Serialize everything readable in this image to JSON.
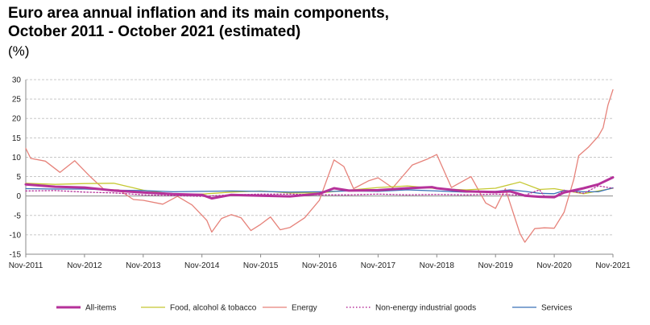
{
  "title_line1": "Euro area annual inflation and its main components,",
  "title_line2": "October 2011 - October 2021 (estimated)",
  "unit": "(%)",
  "chart_data": {
    "type": "line",
    "ylim": [
      -15,
      30
    ],
    "yticks": [
      -15,
      -10,
      -5,
      0,
      5,
      10,
      15,
      20,
      25,
      30
    ],
    "xlim": [
      "2011-11",
      "2021-11"
    ],
    "xticks": [
      "Nov-2011",
      "Nov-2012",
      "Nov-2013",
      "Nov-2014",
      "Nov-2015",
      "Nov-2016",
      "Nov-2017",
      "Nov-2018",
      "Nov-2019",
      "Nov-2020",
      "Nov-2021"
    ],
    "grid": true,
    "legend_position": "bottom",
    "series": [
      {
        "name": "All-items",
        "color": "#b5319a",
        "style": "solid-thick",
        "points": [
          [
            "2011-11",
            3.0
          ],
          [
            "2012-05",
            2.4
          ],
          [
            "2012-11",
            2.2
          ],
          [
            "2013-05",
            1.4
          ],
          [
            "2013-11",
            0.9
          ],
          [
            "2014-05",
            0.5
          ],
          [
            "2014-11",
            0.3
          ],
          [
            "2015-01",
            -0.6
          ],
          [
            "2015-05",
            0.3
          ],
          [
            "2015-11",
            0.1
          ],
          [
            "2016-05",
            -0.1
          ],
          [
            "2016-11",
            0.6
          ],
          [
            "2017-02",
            2.0
          ],
          [
            "2017-05",
            1.4
          ],
          [
            "2017-11",
            1.5
          ],
          [
            "2018-05",
            2.0
          ],
          [
            "2018-10",
            2.3
          ],
          [
            "2018-11",
            2.0
          ],
          [
            "2019-05",
            1.2
          ],
          [
            "2019-11",
            1.0
          ],
          [
            "2020-02",
            1.2
          ],
          [
            "2020-05",
            0.1
          ],
          [
            "2020-08",
            -0.2
          ],
          [
            "2020-11",
            -0.3
          ],
          [
            "2021-01",
            0.9
          ],
          [
            "2021-05",
            2.0
          ],
          [
            "2021-08",
            3.0
          ],
          [
            "2021-11",
            4.8
          ]
        ]
      },
      {
        "name": "Food, alcohol & tobacco",
        "color": "#c5c832",
        "style": "solid",
        "points": [
          [
            "2011-11",
            3.3
          ],
          [
            "2012-05",
            3.0
          ],
          [
            "2012-11",
            3.2
          ],
          [
            "2013-05",
            3.3
          ],
          [
            "2013-11",
            1.5
          ],
          [
            "2014-05",
            0.5
          ],
          [
            "2014-11",
            0.5
          ],
          [
            "2015-05",
            1.0
          ],
          [
            "2015-11",
            1.3
          ],
          [
            "2016-05",
            0.8
          ],
          [
            "2016-11",
            0.8
          ],
          [
            "2017-05",
            1.5
          ],
          [
            "2017-11",
            2.2
          ],
          [
            "2018-05",
            2.6
          ],
          [
            "2018-11",
            1.9
          ],
          [
            "2019-05",
            1.6
          ],
          [
            "2019-11",
            2.0
          ],
          [
            "2020-04",
            3.6
          ],
          [
            "2020-08",
            1.7
          ],
          [
            "2020-11",
            1.9
          ],
          [
            "2021-05",
            0.6
          ],
          [
            "2021-11",
            2.0
          ]
        ]
      },
      {
        "name": "Energy",
        "color": "#e6827a",
        "style": "solid",
        "points": [
          [
            "2011-11",
            12.3
          ],
          [
            "2011-12",
            9.7
          ],
          [
            "2012-03",
            9.0
          ],
          [
            "2012-06",
            6.1
          ],
          [
            "2012-09",
            9.1
          ],
          [
            "2012-12",
            5.2
          ],
          [
            "2013-03",
            1.7
          ],
          [
            "2013-06",
            1.6
          ],
          [
            "2013-09",
            -0.9
          ],
          [
            "2013-11",
            -1.1
          ],
          [
            "2014-03",
            -2.1
          ],
          [
            "2014-06",
            -0.1
          ],
          [
            "2014-09",
            -2.3
          ],
          [
            "2014-12",
            -6.3
          ],
          [
            "2015-01",
            -9.3
          ],
          [
            "2015-03",
            -5.8
          ],
          [
            "2015-05",
            -4.8
          ],
          [
            "2015-07",
            -5.6
          ],
          [
            "2015-09",
            -8.9
          ],
          [
            "2015-11",
            -7.3
          ],
          [
            "2016-01",
            -5.4
          ],
          [
            "2016-03",
            -8.7
          ],
          [
            "2016-05",
            -8.1
          ],
          [
            "2016-08",
            -5.6
          ],
          [
            "2016-11",
            -1.1
          ],
          [
            "2017-02",
            9.3
          ],
          [
            "2017-04",
            7.6
          ],
          [
            "2017-06",
            1.9
          ],
          [
            "2017-09",
            3.9
          ],
          [
            "2017-11",
            4.7
          ],
          [
            "2018-02",
            2.1
          ],
          [
            "2018-06",
            8.0
          ],
          [
            "2018-09",
            9.5
          ],
          [
            "2018-11",
            10.7
          ],
          [
            "2019-02",
            2.2
          ],
          [
            "2019-06",
            5.0
          ],
          [
            "2019-09",
            -1.8
          ],
          [
            "2019-11",
            -3.2
          ],
          [
            "2020-01",
            1.9
          ],
          [
            "2020-04",
            -9.7
          ],
          [
            "2020-05",
            -11.9
          ],
          [
            "2020-07",
            -8.4
          ],
          [
            "2020-09",
            -8.2
          ],
          [
            "2020-11",
            -8.3
          ],
          [
            "2021-01",
            -4.2
          ],
          [
            "2021-03",
            4.3
          ],
          [
            "2021-04",
            10.4
          ],
          [
            "2021-06",
            12.6
          ],
          [
            "2021-08",
            15.4
          ],
          [
            "2021-09",
            17.6
          ],
          [
            "2021-10",
            23.5
          ],
          [
            "2021-11",
            27.4
          ]
        ]
      },
      {
        "name": "Non-energy industrial goods",
        "color": "#b5319a",
        "style": "dotted",
        "points": [
          [
            "2011-11",
            1.3
          ],
          [
            "2012-05",
            1.4
          ],
          [
            "2012-11",
            1.0
          ],
          [
            "2013-05",
            0.8
          ],
          [
            "2013-11",
            0.3
          ],
          [
            "2014-05",
            0.1
          ],
          [
            "2014-11",
            -0.1
          ],
          [
            "2015-05",
            0.3
          ],
          [
            "2015-11",
            0.5
          ],
          [
            "2016-05",
            0.5
          ],
          [
            "2016-11",
            0.3
          ],
          [
            "2017-05",
            0.3
          ],
          [
            "2017-11",
            0.5
          ],
          [
            "2018-05",
            0.3
          ],
          [
            "2018-11",
            0.4
          ],
          [
            "2019-05",
            0.3
          ],
          [
            "2019-11",
            0.5
          ],
          [
            "2020-05",
            0.2
          ],
          [
            "2020-08",
            1.6
          ],
          [
            "2020-09",
            -0.1
          ],
          [
            "2020-11",
            -0.3
          ],
          [
            "2021-01",
            1.5
          ],
          [
            "2021-05",
            0.7
          ],
          [
            "2021-08",
            2.6
          ],
          [
            "2021-11",
            2.0
          ]
        ]
      },
      {
        "name": "Services",
        "color": "#3a72b8",
        "style": "solid",
        "points": [
          [
            "2011-11",
            1.9
          ],
          [
            "2012-05",
            1.8
          ],
          [
            "2012-11",
            1.8
          ],
          [
            "2013-05",
            1.5
          ],
          [
            "2013-11",
            1.4
          ],
          [
            "2014-05",
            1.1
          ],
          [
            "2014-11",
            1.2
          ],
          [
            "2015-05",
            1.3
          ],
          [
            "2015-11",
            1.2
          ],
          [
            "2016-05",
            1.0
          ],
          [
            "2016-11",
            1.1
          ],
          [
            "2017-05",
            1.3
          ],
          [
            "2017-11",
            1.2
          ],
          [
            "2018-05",
            1.6
          ],
          [
            "2018-11",
            1.3
          ],
          [
            "2019-05",
            1.0
          ],
          [
            "2019-11",
            1.2
          ],
          [
            "2020-02",
            1.6
          ],
          [
            "2020-05",
            1.2
          ],
          [
            "2020-08",
            0.7
          ],
          [
            "2020-11",
            0.6
          ],
          [
            "2021-01",
            1.4
          ],
          [
            "2021-05",
            1.1
          ],
          [
            "2021-08",
            1.1
          ],
          [
            "2021-11",
            2.1
          ]
        ]
      }
    ]
  }
}
